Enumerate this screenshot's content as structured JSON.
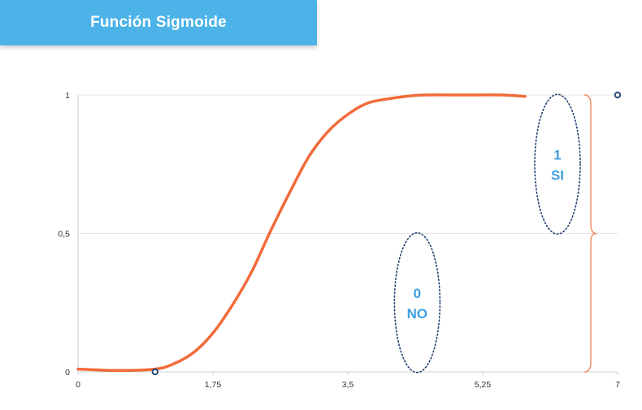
{
  "header": {
    "title": "Función Sigmoide"
  },
  "colors": {
    "banner": "#4bb3e8",
    "curve": "#f26b3a",
    "brace": "#f08a5d",
    "annotation_text": "#3d9fe0",
    "ellipse_stroke": "#1f3f6e",
    "grid": "#e6e6e6",
    "marker": "#2a4b7c"
  },
  "chart_data": {
    "type": "line",
    "title": "",
    "xlabel": "",
    "ylabel": "",
    "xlim": [
      0,
      7
    ],
    "ylim": [
      0,
      1
    ],
    "grid": true,
    "x_ticks": [
      {
        "value": 0,
        "label": "0"
      },
      {
        "value": 1.75,
        "label": "1,75"
      },
      {
        "value": 3.5,
        "label": "3,5"
      },
      {
        "value": 5.25,
        "label": "5,25"
      },
      {
        "value": 7,
        "label": "7"
      }
    ],
    "y_ticks": [
      {
        "value": 0,
        "label": "0"
      },
      {
        "value": 0.5,
        "label": "0,5"
      },
      {
        "value": 1,
        "label": "1"
      }
    ],
    "series": [
      {
        "x": [
          0,
          0.5,
          1,
          1.25,
          1.5,
          1.75,
          2,
          2.25,
          2.5,
          2.75,
          3,
          3.25,
          3.5,
          3.75,
          4,
          4.25,
          4.5,
          5,
          5.5,
          5.8
        ],
        "values": [
          0.01,
          0.005,
          0.01,
          0.03,
          0.07,
          0.14,
          0.24,
          0.36,
          0.51,
          0.65,
          0.78,
          0.87,
          0.93,
          0.97,
          0.985,
          0.995,
          1.0,
          1.0,
          1.0,
          0.995
        ]
      }
    ],
    "markers": [
      {
        "x": 1.0,
        "y": 0.0
      },
      {
        "x": 7.0,
        "y": 1.0
      }
    ],
    "annotations": [
      {
        "line1": "1",
        "line2": "SI",
        "x": 6.22,
        "y": 0.75
      },
      {
        "line1": "0",
        "line2": "NO",
        "x": 4.4,
        "y": 0.25
      }
    ],
    "brace": {
      "x": 6.6,
      "y_from": 0,
      "y_to": 1
    }
  }
}
